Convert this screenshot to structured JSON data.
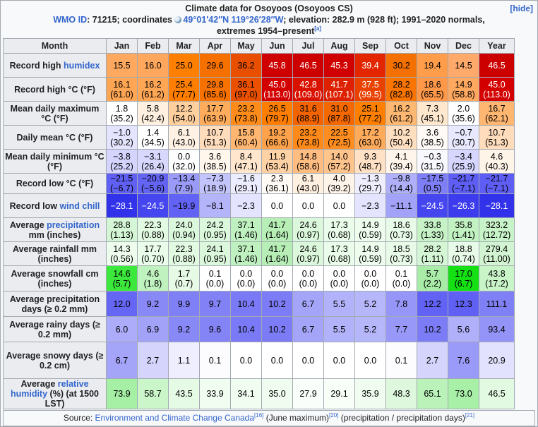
{
  "title": "Climate data for Osoyoos (Osoyoos CS)",
  "hide_label": "[hide]",
  "subtitle": {
    "wmo_label": "WMO ID",
    "wmo_rest": ": 71215; coordinates ",
    "coords": "49°01′42″N 119°26′28″W",
    "elevation": "; elevation: 282.9 m (928 ft); 1991–2020 normals, extremes 1954–present",
    "ref": "[a]"
  },
  "months": [
    "Jan",
    "Feb",
    "Mar",
    "Apr",
    "May",
    "Jun",
    "Jul",
    "Aug",
    "Sep",
    "Oct",
    "Nov",
    "Dec",
    "Year"
  ],
  "header_month": "Month",
  "rows": [
    {
      "label": "Record high ",
      "link": "humidex",
      "suffix": "",
      "values": [
        [
          "15.5"
        ],
        [
          "16.0"
        ],
        [
          "25.0"
        ],
        [
          "29.6"
        ],
        [
          "36.2"
        ],
        [
          "45.8"
        ],
        [
          "46.5"
        ],
        [
          "45.3"
        ],
        [
          "39.4"
        ],
        [
          "30.2"
        ],
        [
          "19.4"
        ],
        [
          "14.5"
        ],
        [
          "46.5"
        ]
      ],
      "colors": [
        "#ffa960",
        "#ffa75c",
        "#ff8000",
        "#f67000",
        "#e94f00",
        "#cf0000",
        "#cd0000",
        "#d10000",
        "#e42600",
        "#f47000",
        "#ff9d4a",
        "#ffa96b",
        "#cd0000"
      ]
    },
    {
      "label": "Record high °C (°F)",
      "link": "",
      "suffix": "",
      "values": [
        [
          "16.1",
          "(61.0)"
        ],
        [
          "16.2",
          "(61.2)"
        ],
        [
          "25.4",
          "(77.7)"
        ],
        [
          "29.8",
          "(85.6)"
        ],
        [
          "36.1",
          "(97.0)"
        ],
        [
          "45.0",
          "(113.0)"
        ],
        [
          "42.8",
          "(109.0)"
        ],
        [
          "41.7",
          "(107.1)"
        ],
        [
          "37.5",
          "(99.5)"
        ],
        [
          "28.2",
          "(82.8)"
        ],
        [
          "18.6",
          "(65.5)"
        ],
        [
          "14.9",
          "(58.8)"
        ],
        [
          "45.0",
          "(113.0)"
        ]
      ],
      "colors": [
        "#ffa654",
        "#ffa654",
        "#ff7e00",
        "#f77100",
        "#ea5000",
        "#d30000",
        "#d91200",
        "#dd2000",
        "#e84100",
        "#f97400",
        "#ff9848",
        "#ffa860",
        "#d30000"
      ]
    },
    {
      "label": "Mean daily maximum °C (°F)",
      "link": "",
      "suffix": "",
      "values": [
        [
          "1.8",
          "(35.2)"
        ],
        [
          "5.8",
          "(42.4)"
        ],
        [
          "12.2",
          "(54.0)"
        ],
        [
          "17.7",
          "(63.9)"
        ],
        [
          "23.2",
          "(73.8)"
        ],
        [
          "26.5",
          "(79.7)"
        ],
        [
          "31.6",
          "(88.9)"
        ],
        [
          "31.0",
          "(87.8)"
        ],
        [
          "25.1",
          "(77.2)"
        ],
        [
          "16.2",
          "(61.2)"
        ],
        [
          "7.3",
          "(45.1)"
        ],
        [
          "2.0",
          "(35.6)"
        ],
        [
          "16.7",
          "(62.1)"
        ]
      ],
      "colors": [
        "#ffffff",
        "#fff0e0",
        "#ffcf9e",
        "#ffad5c",
        "#ff8c1a",
        "#ff7e00",
        "#f36300",
        "#f56800",
        "#ff7f00",
        "#ffb872",
        "#ffe8ce",
        "#ffffff",
        "#ffb671"
      ]
    },
    {
      "label": "Daily mean °C (°F)",
      "link": "",
      "suffix": "",
      "values": [
        [
          "−1.0",
          "(30.2)"
        ],
        [
          "1.4",
          "(34.5)"
        ],
        [
          "6.1",
          "(43.0)"
        ],
        [
          "10.7",
          "(51.3)"
        ],
        [
          "15.8",
          "(60.4)"
        ],
        [
          "19.2",
          "(66.6)"
        ],
        [
          "23.2",
          "(73.8)"
        ],
        [
          "22.5",
          "(72.5)"
        ],
        [
          "17.2",
          "(63.0)"
        ],
        [
          "10.2",
          "(50.4)"
        ],
        [
          "3.6",
          "(38.5)"
        ],
        [
          "−0.7",
          "(30.7)"
        ],
        [
          "10.7",
          "(51.3)"
        ]
      ],
      "colors": [
        "#e4e4ff",
        "#ffffff",
        "#fff2e4",
        "#ffdcbb",
        "#ffb670",
        "#ffa24c",
        "#ff8a1a",
        "#ff8d20",
        "#ffab5c",
        "#ffdfc0",
        "#fffaf5",
        "#e8e8ff",
        "#ffdcbb"
      ]
    },
    {
      "label": "Mean daily minimum °C (°F)",
      "link": "",
      "suffix": "",
      "values": [
        [
          "−3.8",
          "(25.2)"
        ],
        [
          "−3.1",
          "(26.4)"
        ],
        [
          "0.0",
          "(32.0)"
        ],
        [
          "3.6",
          "(38.5)"
        ],
        [
          "8.4",
          "(47.1)"
        ],
        [
          "11.9",
          "(53.4)"
        ],
        [
          "14.8",
          "(58.6)"
        ],
        [
          "14.0",
          "(57.2)"
        ],
        [
          "9.3",
          "(48.7)"
        ],
        [
          "4.1",
          "(39.4)"
        ],
        [
          "−0.3",
          "(31.5)"
        ],
        [
          "−3.4",
          "(25.9)"
        ],
        [
          "4.6",
          "(40.3)"
        ]
      ],
      "colors": [
        "#d4d4ff",
        "#d8d8ff",
        "#fefeff",
        "#fff6ec",
        "#ffe6cc",
        "#ffd2a6",
        "#ffbd82",
        "#ffc38c",
        "#ffe2c6",
        "#fff5ea",
        "#f8f8ff",
        "#d6d6ff",
        "#fff4e8"
      ]
    },
    {
      "label": "Record low °C (°F)",
      "link": "",
      "suffix": "",
      "values": [
        [
          "−21.5",
          "(−6.7)"
        ],
        [
          "−20.9",
          "(−5.6)"
        ],
        [
          "−13.4",
          "(7.9)"
        ],
        [
          "−7.3",
          "(18.9)"
        ],
        [
          "−1.6",
          "(29.1)"
        ],
        [
          "2.3",
          "(36.1)"
        ],
        [
          "6.1",
          "(43.0)"
        ],
        [
          "4.0",
          "(39.2)"
        ],
        [
          "−1.3",
          "(29.7)"
        ],
        [
          "−9.8",
          "(14.4)"
        ],
        [
          "−17.5",
          "(0.5)"
        ],
        [
          "−21.7",
          "(−7.1)"
        ],
        [
          "−21.7",
          "(−7.1)"
        ]
      ],
      "colors": [
        "#6060f4",
        "#6464f4",
        "#9a9af8",
        "#c4c4fc",
        "#ececff",
        "#fffaf4",
        "#fff0e0",
        "#fff4ea",
        "#eeeeff",
        "#b0b0fa",
        "#7e7ef6",
        "#5e5ef4",
        "#5e5ef4"
      ]
    },
    {
      "label": "Record low ",
      "link": "wind chill",
      "suffix": "",
      "values": [
        [
          "−28.1"
        ],
        [
          "−24.5"
        ],
        [
          "−19.9"
        ],
        [
          "−8.1"
        ],
        [
          "−2.3"
        ],
        [
          "0.0"
        ],
        [
          "0.0"
        ],
        [
          "0.0"
        ],
        [
          "−2.3"
        ],
        [
          "−11.1"
        ],
        [
          "−24.5"
        ],
        [
          "−26.3"
        ],
        [
          "−28.1"
        ]
      ],
      "colors": [
        "#3232ea",
        "#4646f0",
        "#6262f4",
        "#b4b4fa",
        "#e4e4ff",
        "#ffffff",
        "#ffffff",
        "#ffffff",
        "#e4e4ff",
        "#a2a2f8",
        "#4646f0",
        "#3c3cee",
        "#3232ea"
      ]
    },
    {
      "label": "Average ",
      "link": "precipitation",
      "suffix": " mm (inches)",
      "values": [
        [
          "28.8",
          "(1.13)"
        ],
        [
          "22.3",
          "(0.88)"
        ],
        [
          "24.0",
          "(0.94)"
        ],
        [
          "24.2",
          "(0.95)"
        ],
        [
          "37.1",
          "(1.46)"
        ],
        [
          "41.7",
          "(1.64)"
        ],
        [
          "24.6",
          "(0.97)"
        ],
        [
          "17.3",
          "(0.68)"
        ],
        [
          "14.9",
          "(0.59)"
        ],
        [
          "18.6",
          "(0.73)"
        ],
        [
          "33.8",
          "(1.33)"
        ],
        [
          "35.8",
          "(1.41)"
        ],
        [
          "323.2",
          "(12.72)"
        ]
      ],
      "colors": [
        "#d4f6d4",
        "#e2fae2",
        "#dcf8dc",
        "#dcf8dc",
        "#bff0bf",
        "#b6eeb6",
        "#dcf8dc",
        "#eafcea",
        "#eefcee",
        "#e8fae8",
        "#c6f2c6",
        "#c2f2c2",
        "#c8f2c8"
      ]
    },
    {
      "label": "Average rainfall mm (inches)",
      "link": "",
      "suffix": "",
      "values": [
        [
          "14.3",
          "(0.56)"
        ],
        [
          "17.7",
          "(0.70)"
        ],
        [
          "22.3",
          "(0.88)"
        ],
        [
          "24.1",
          "(0.95)"
        ],
        [
          "37.1",
          "(1.46)"
        ],
        [
          "41.7",
          "(1.64)"
        ],
        [
          "24.6",
          "(0.97)"
        ],
        [
          "17.3",
          "(0.68)"
        ],
        [
          "14.9",
          "(0.59)"
        ],
        [
          "18.5",
          "(0.73)"
        ],
        [
          "28.2",
          "(1.11)"
        ],
        [
          "18.8",
          "(0.74)"
        ],
        [
          "279.4",
          "(11.00)"
        ]
      ],
      "colors": [
        "#eefcee",
        "#eafcea",
        "#e2fae2",
        "#dcf8dc",
        "#bff0bf",
        "#b6eeb6",
        "#dcf8dc",
        "#eafcea",
        "#eefcee",
        "#e8fae8",
        "#d4f6d4",
        "#e8fae8",
        "#d2f4d2"
      ]
    },
    {
      "label": "Average snowfall cm (inches)",
      "link": "",
      "suffix": "",
      "values": [
        [
          "14.6",
          "(5.7)"
        ],
        [
          "4.6",
          "(1.8)"
        ],
        [
          "1.7",
          "(0.7)"
        ],
        [
          "0.1",
          "(0.0)"
        ],
        [
          "0.0",
          "(0.0)"
        ],
        [
          "0.0",
          "(0.0)"
        ],
        [
          "0.0",
          "(0.0)"
        ],
        [
          "0.0",
          "(0.0)"
        ],
        [
          "0.0",
          "(0.0)"
        ],
        [
          "0.1",
          "(0.0)"
        ],
        [
          "5.7",
          "(2.2)"
        ],
        [
          "17.0",
          "(6.7)"
        ],
        [
          "43.8",
          "(17.2)"
        ]
      ],
      "colors": [
        "#3ce83c",
        "#bff2bf",
        "#e6fae6",
        "#ffffff",
        "#ffffff",
        "#ffffff",
        "#ffffff",
        "#ffffff",
        "#ffffff",
        "#ffffff",
        "#a8eca8",
        "#14e014",
        "#c8f4c8"
      ]
    },
    {
      "label": "Average precipitation days (≥ 0.2 mm)",
      "link": "",
      "suffix": "",
      "values": [
        [
          "12.0"
        ],
        [
          "9.2"
        ],
        [
          "9.9"
        ],
        [
          "9.7"
        ],
        [
          "10.4"
        ],
        [
          "10.2"
        ],
        [
          "6.7"
        ],
        [
          "5.5"
        ],
        [
          "5.2"
        ],
        [
          "7.8"
        ],
        [
          "12.2"
        ],
        [
          "12.3"
        ],
        [
          "111.1"
        ]
      ],
      "colors": [
        "#6666f4",
        "#8888f6",
        "#8080f6",
        "#8282f6",
        "#7a7af6",
        "#7c7cf6",
        "#a4a4f8",
        "#b2b2fa",
        "#b6b6fa",
        "#9696f8",
        "#6262f4",
        "#6060f4",
        "#8080f6"
      ]
    },
    {
      "label": "Average rainy days (≥ 0.2 mm)",
      "link": "",
      "suffix": "",
      "values": [
        [
          "6.0"
        ],
        [
          "6.9"
        ],
        [
          "9.2"
        ],
        [
          "9.6"
        ],
        [
          "10.4"
        ],
        [
          "10.2"
        ],
        [
          "6.7"
        ],
        [
          "5.5"
        ],
        [
          "5.2"
        ],
        [
          "7.7"
        ],
        [
          "10.2"
        ],
        [
          "5.6"
        ],
        [
          "93.4"
        ]
      ],
      "colors": [
        "#acacfa",
        "#a2a2f8",
        "#8888f6",
        "#8484f6",
        "#7a7af6",
        "#7c7cf6",
        "#a4a4f8",
        "#b2b2fa",
        "#b6b6fa",
        "#9898f8",
        "#7c7cf6",
        "#b0b0fa",
        "#9494f8"
      ]
    },
    {
      "label": "Average snowy days (≥ 0.2 cm)",
      "link": "",
      "suffix": "",
      "values": [
        [
          "6.7"
        ],
        [
          "2.7"
        ],
        [
          "1.1"
        ],
        [
          "0.1"
        ],
        [
          "0.0"
        ],
        [
          "0.0"
        ],
        [
          "0.0"
        ],
        [
          "0.0"
        ],
        [
          "0.0"
        ],
        [
          "0.1"
        ],
        [
          "2.7"
        ],
        [
          "7.6"
        ],
        [
          "20.9"
        ]
      ],
      "colors": [
        "#a4a4f8",
        "#d4d4fc",
        "#eeeeff",
        "#fcfcff",
        "#ffffff",
        "#ffffff",
        "#ffffff",
        "#ffffff",
        "#ffffff",
        "#fcfcff",
        "#d4d4fc",
        "#9a9af8",
        "#e2e2fe"
      ]
    },
    {
      "label": "Average ",
      "link": "relative humidity",
      "suffix": " (%) (at 1500 LST)",
      "values": [
        [
          "73.9"
        ],
        [
          "58.7"
        ],
        [
          "43.5"
        ],
        [
          "33.9"
        ],
        [
          "34.1"
        ],
        [
          "35.0"
        ],
        [
          "27.9"
        ],
        [
          "29.1"
        ],
        [
          "35.9"
        ],
        [
          "48.3"
        ],
        [
          "65.1"
        ],
        [
          "73.0"
        ],
        [
          "46.5"
        ]
      ],
      "colors": [
        "#a6f0a6",
        "#caf6ca",
        "#e6fbe6",
        "#f2fdf2",
        "#f2fdf2",
        "#f0fcf0",
        "#fafefa",
        "#f8fef8",
        "#f0fcf0",
        "#def8de",
        "#baf2ba",
        "#a8f0a8",
        "#e2fae2"
      ]
    }
  ],
  "footer": {
    "prefix": "Source: ",
    "link": "Environment and Climate Change Canada",
    "ref1": "[16]",
    "mid": " (June maximum)",
    "ref2": "[20]",
    "mid2": " (precipitation / precipitation days)",
    "ref3": "[21]"
  },
  "colors": {
    "header_bg": "#eaecf0",
    "border": "#a2a9b1",
    "link": "#3366cc"
  }
}
